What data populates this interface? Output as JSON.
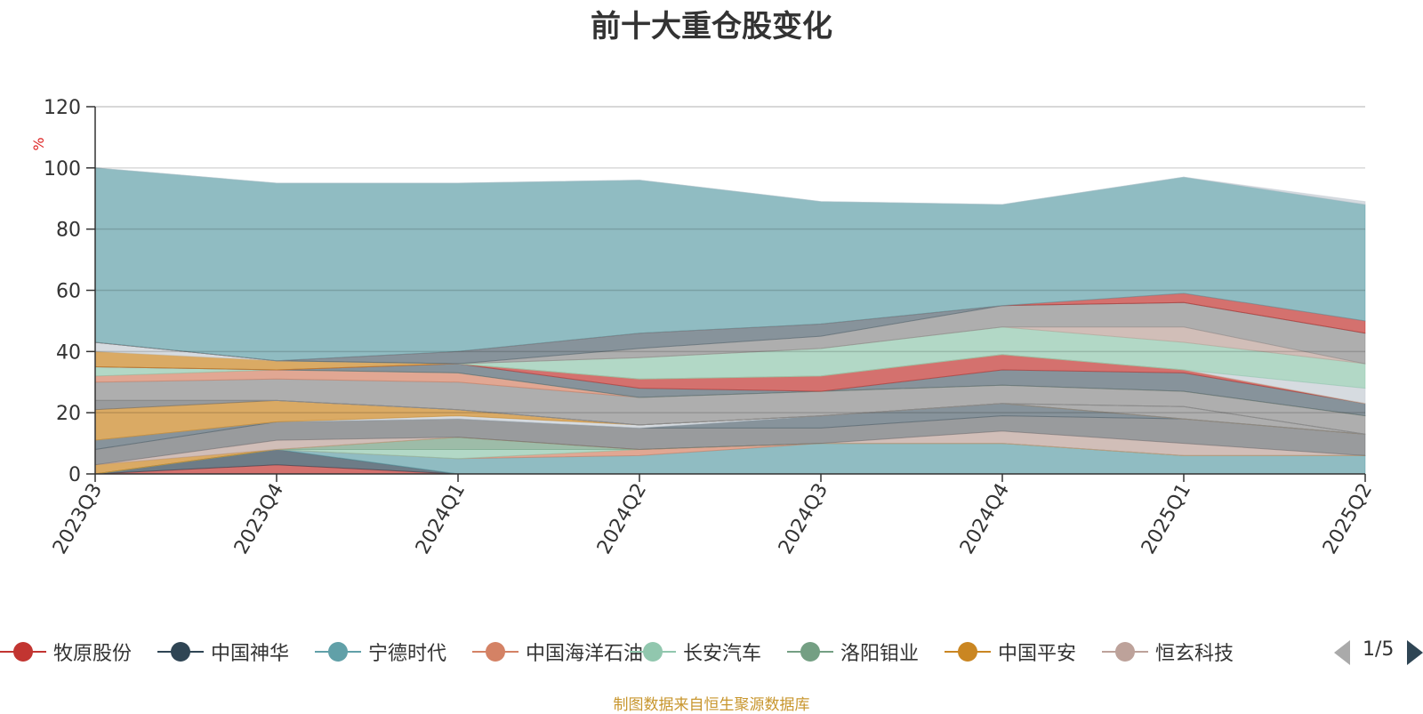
{
  "chart_data": {
    "type": "area",
    "title": "前十大重仓股变化",
    "ylabel": "%",
    "ylim": [
      0,
      120
    ],
    "yticks": [
      0,
      20,
      40,
      60,
      80,
      100,
      120
    ],
    "categories": [
      "2023Q3",
      "2023Q4",
      "2024Q1",
      "2024Q2",
      "2024Q3",
      "2024Q4",
      "2025Q1",
      "2025Q2"
    ],
    "legend_position": "bottom",
    "grid": true,
    "stacked": true,
    "series": [
      {
        "name": "牧原股份",
        "color": "#c23531",
        "values": [
          0,
          3,
          0,
          0,
          0,
          0,
          0,
          0
        ]
      },
      {
        "name": "中国神华",
        "color": "#2f4554",
        "values": [
          0,
          5,
          0,
          0,
          0,
          0,
          0,
          0
        ]
      },
      {
        "name": "宁德时代",
        "color": "#61a0a8",
        "values": [
          0,
          0,
          5,
          6,
          10,
          10,
          6,
          6
        ]
      },
      {
        "name": "中国海洋石油",
        "color": "#d48265",
        "values": [
          0,
          0,
          0,
          2,
          0,
          0,
          0,
          0
        ]
      },
      {
        "name": "长安汽车",
        "color": "#91c7ae",
        "values": [
          0,
          0,
          3,
          0,
          0,
          0,
          0,
          0
        ]
      },
      {
        "name": "洛阳钼业",
        "color": "#749f83",
        "values": [
          0,
          0,
          4,
          0,
          0,
          0,
          0,
          0
        ]
      },
      {
        "name": "中国平安",
        "color": "#ca8622",
        "values": [
          3,
          0,
          0,
          0,
          0,
          0,
          0,
          0
        ]
      },
      {
        "name": "恒玄科技",
        "color": "#bda29a",
        "values": [
          0,
          3,
          0,
          0,
          0,
          4,
          4,
          0
        ]
      },
      {
        "name": "",
        "color": "#6e7074",
        "values": [
          5,
          6,
          6,
          7,
          5,
          5,
          8,
          7
        ]
      },
      {
        "name": "",
        "color": "#546570",
        "values": [
          3,
          0,
          0,
          0,
          4,
          4,
          0,
          0
        ]
      },
      {
        "name": "",
        "color": "#c4ccd3",
        "values": [
          0,
          0,
          1,
          1,
          0,
          0,
          0,
          0
        ]
      },
      {
        "name": "",
        "color": "#ca8622",
        "values": [
          10,
          7,
          2,
          0,
          0,
          0,
          0,
          0
        ]
      },
      {
        "name": "",
        "color": "#6e7074",
        "values": [
          3,
          0,
          0,
          0,
          0,
          0,
          0,
          0
        ]
      },
      {
        "name": "",
        "color": "#8b8b8b",
        "values": [
          0,
          0,
          0,
          0,
          0,
          0,
          4,
          0
        ]
      },
      {
        "name": "",
        "color": "#8b8b8b",
        "values": [
          0,
          0,
          0,
          0,
          0,
          0,
          0,
          0
        ]
      },
      {
        "name": "",
        "color": "#8b8b8b",
        "values": [
          0,
          0,
          0,
          0,
          0,
          0,
          0,
          0
        ]
      },
      {
        "name": "",
        "color": "#8b8b8b",
        "values": [
          0,
          0,
          0,
          0,
          0,
          0,
          0,
          0
        ]
      },
      {
        "name": "",
        "color": "#8b8b8b",
        "values": [
          6,
          7,
          9,
          9,
          8,
          6,
          5,
          6
        ]
      },
      {
        "name": "",
        "color": "#d48265",
        "values": [
          2,
          3,
          3,
          0,
          0,
          0,
          0,
          0
        ]
      },
      {
        "name": "",
        "color": "#91c7ae",
        "values": [
          3,
          0,
          0,
          0,
          0,
          0,
          0,
          0
        ]
      },
      {
        "name": "",
        "color": "#546570",
        "values": [
          0,
          0,
          3,
          3,
          0,
          5,
          6,
          4
        ]
      },
      {
        "name": "",
        "color": "#c23531",
        "values": [
          0,
          0,
          0,
          3,
          5,
          5,
          1,
          0
        ]
      },
      {
        "name": "",
        "color": "#ca8622",
        "values": [
          5,
          3,
          0,
          0,
          0,
          0,
          0,
          0
        ]
      },
      {
        "name": "",
        "color": "#c4ccd3",
        "values": [
          3,
          0,
          0,
          0,
          0,
          0,
          0,
          5
        ]
      },
      {
        "name": "",
        "color": "#91c7ae",
        "values": [
          0,
          0,
          0,
          7,
          9,
          9,
          9,
          8
        ]
      },
      {
        "name": "",
        "color": "#bda29a",
        "values": [
          0,
          0,
          0,
          0,
          0,
          0,
          5,
          0
        ]
      },
      {
        "name": "",
        "color": "#8b8b8b",
        "values": [
          0,
          0,
          0,
          3,
          4,
          7,
          8,
          10
        ]
      },
      {
        "name": "",
        "color": "#546570",
        "values": [
          0,
          0,
          4,
          5,
          4,
          0,
          0,
          0
        ]
      },
      {
        "name": "",
        "color": "#c23531",
        "values": [
          0,
          0,
          0,
          0,
          0,
          0,
          3,
          4
        ]
      },
      {
        "name": "",
        "color": "#61a0a8",
        "values": [
          57,
          58,
          55,
          50,
          40,
          33,
          38,
          38
        ]
      },
      {
        "name": "",
        "color": "#c4ccd3",
        "values": [
          0,
          0,
          0,
          0,
          0,
          0,
          0,
          1
        ]
      }
    ]
  },
  "legend": {
    "page_text": "1/5"
  },
  "source_note": "制图数据来自恒生聚源数据库"
}
